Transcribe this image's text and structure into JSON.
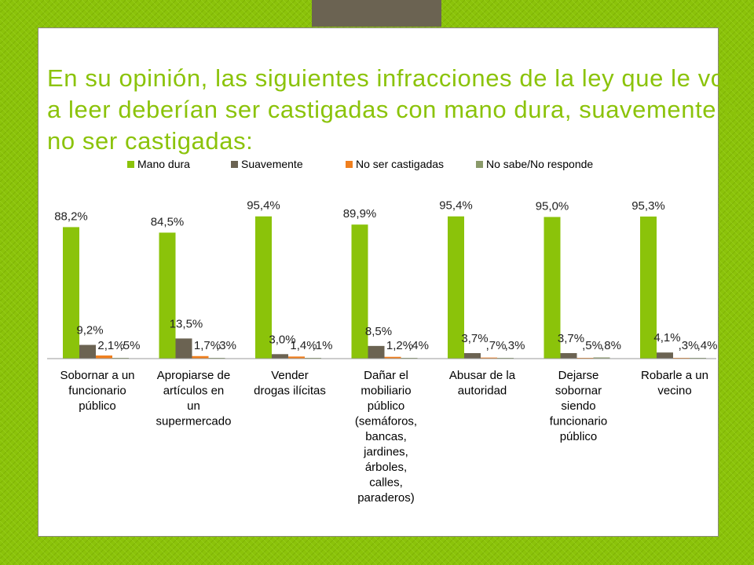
{
  "slide": {
    "title": "En su opinión, las siguientes infracciones de la ley que le voy a leer deberían ser castigadas con mano dura, suavemente o no ser castigadas:"
  },
  "colors": {
    "background": "#8bc30a",
    "top_bar": "#6b6352",
    "title": "#8bc30a"
  },
  "chart_data": {
    "type": "bar",
    "title": "",
    "xlabel": "",
    "ylabel": "",
    "ylim": [
      0,
      100
    ],
    "grid": false,
    "legend_position": "top",
    "categories": [
      [
        "Sobornar a un",
        "funcionario",
        "público"
      ],
      [
        "Apropiarse de",
        "artículos en",
        "un",
        "supermercado"
      ],
      [
        "Vender",
        "drogas ilícitas"
      ],
      [
        "Dañar el",
        "mobiliario",
        "público",
        "(semáforos,",
        "bancas,",
        "jardines,",
        "árboles,",
        "calles,",
        "paraderos)"
      ],
      [
        "Abusar de la",
        "autoridad"
      ],
      [
        "Dejarse",
        "sobornar",
        "siendo",
        "funcionario",
        "público"
      ],
      [
        "Robarle a un",
        "vecino"
      ]
    ],
    "series": [
      {
        "name": "Mano dura",
        "color": "#8bc30a",
        "values": [
          88.2,
          84.5,
          95.4,
          89.9,
          95.4,
          95.0,
          95.3
        ],
        "labels": [
          "88,2%",
          "84,5%",
          "95,4%",
          "89,9%",
          "95,4%",
          "95,0%",
          "95,3%"
        ]
      },
      {
        "name": "Suavemente",
        "color": "#6b6352",
        "values": [
          9.2,
          13.5,
          3.0,
          8.5,
          3.7,
          3.7,
          4.1
        ],
        "labels": [
          "9,2%",
          "13,5%",
          "3,0%",
          "8,5%",
          "3,7%",
          "3,7%",
          "4,1%"
        ]
      },
      {
        "name": "No ser castigadas",
        "color": "#f07f1e",
        "values": [
          2.1,
          1.7,
          1.4,
          1.2,
          0.7,
          0.5,
          0.3
        ],
        "labels": [
          "2,1%",
          "1,7%",
          "1,4%",
          "1,2%",
          ",7%",
          ",5%",
          ",3%"
        ]
      },
      {
        "name": "No sabe/No responde",
        "color": "#8a9a6a",
        "values": [
          0.5,
          0.3,
          0.1,
          0.4,
          0.3,
          0.8,
          0.4
        ],
        "labels": [
          ",5%",
          ",3%",
          ",1%",
          ",4%",
          ",3%",
          ",8%",
          ",4%"
        ]
      }
    ]
  }
}
